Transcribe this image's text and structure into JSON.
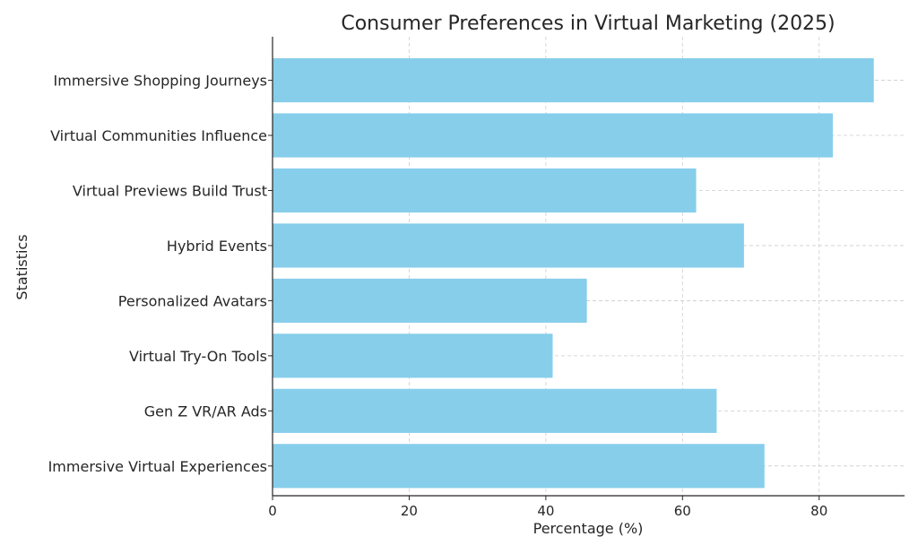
{
  "chart_data": {
    "type": "bar",
    "orientation": "horizontal",
    "title": "Consumer Preferences in Virtual Marketing (2025)",
    "xlabel": "Percentage (%)",
    "ylabel": "Statistics",
    "categories": [
      "Immersive Shopping Journeys",
      "Virtual Communities Influence",
      "Virtual Previews Build Trust",
      "Hybrid Events",
      "Personalized Avatars",
      "Virtual Try-On Tools",
      "Gen Z VR/AR Ads",
      "Immersive Virtual Experiences"
    ],
    "values": [
      88,
      82,
      62,
      69,
      46,
      41,
      65,
      72
    ],
    "xlim": [
      0,
      92.5
    ],
    "xticks": [
      0,
      20,
      40,
      60,
      80
    ],
    "grid": true,
    "bar_color": "#87ceeb",
    "grid_color": "#cccccc",
    "text_color": "#262626"
  }
}
